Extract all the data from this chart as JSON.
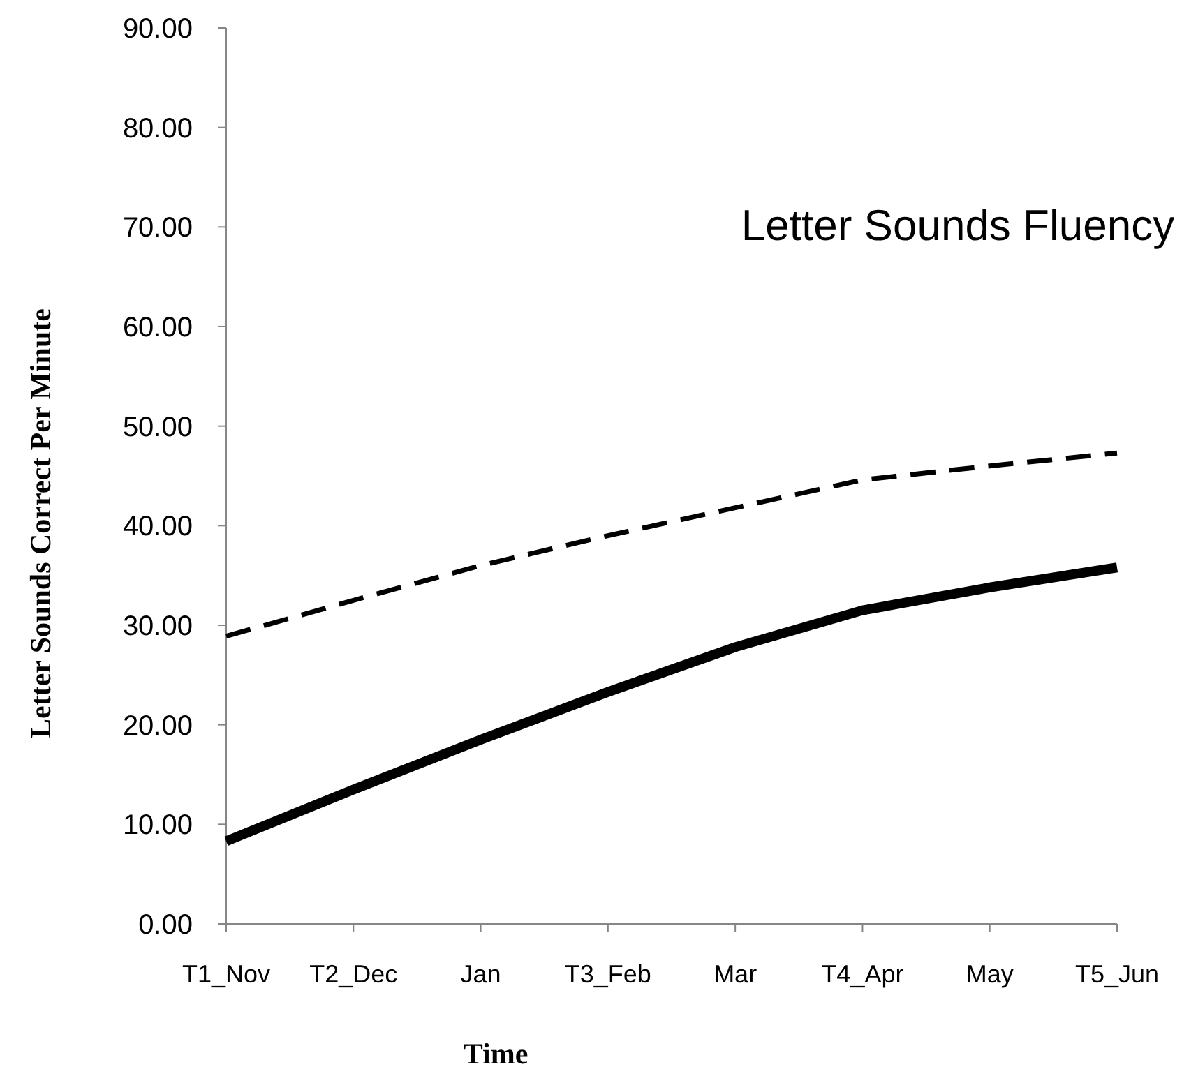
{
  "chart_data": {
    "type": "line",
    "title": "Letter Sounds Fluency",
    "xlabel": "Time",
    "ylabel": "Letter Sounds Correct Per Minute",
    "categories": [
      "T1_Nov",
      "T2_Dec",
      "Jan",
      "T3_Feb",
      "Mar",
      "T4_Apr",
      "May",
      "T5_Jun"
    ],
    "ylim": [
      0,
      90
    ],
    "yticks": [
      {
        "value": 0,
        "label": "0.00"
      },
      {
        "value": 10,
        "label": "10.00"
      },
      {
        "value": 20,
        "label": "20.00"
      },
      {
        "value": 30,
        "label": "30.00"
      },
      {
        "value": 40,
        "label": "40.00"
      },
      {
        "value": 50,
        "label": "50.00"
      },
      {
        "value": 60,
        "label": "60.00"
      },
      {
        "value": 70,
        "label": "70.00"
      },
      {
        "value": 80,
        "label": "80.00"
      },
      {
        "value": 90,
        "label": "90.00"
      }
    ],
    "grid": false,
    "marker": "none",
    "series": [
      {
        "color": "#000000",
        "line_style": "solid",
        "values": [
          8.3,
          13.5,
          18.5,
          23.3,
          27.8,
          31.5,
          33.8,
          35.8
        ]
      },
      {
        "color": "#000000",
        "line_style": "dashed",
        "values": [
          28.9,
          32.5,
          36.0,
          39.0,
          41.8,
          44.6,
          46.0,
          47.3
        ]
      }
    ]
  }
}
